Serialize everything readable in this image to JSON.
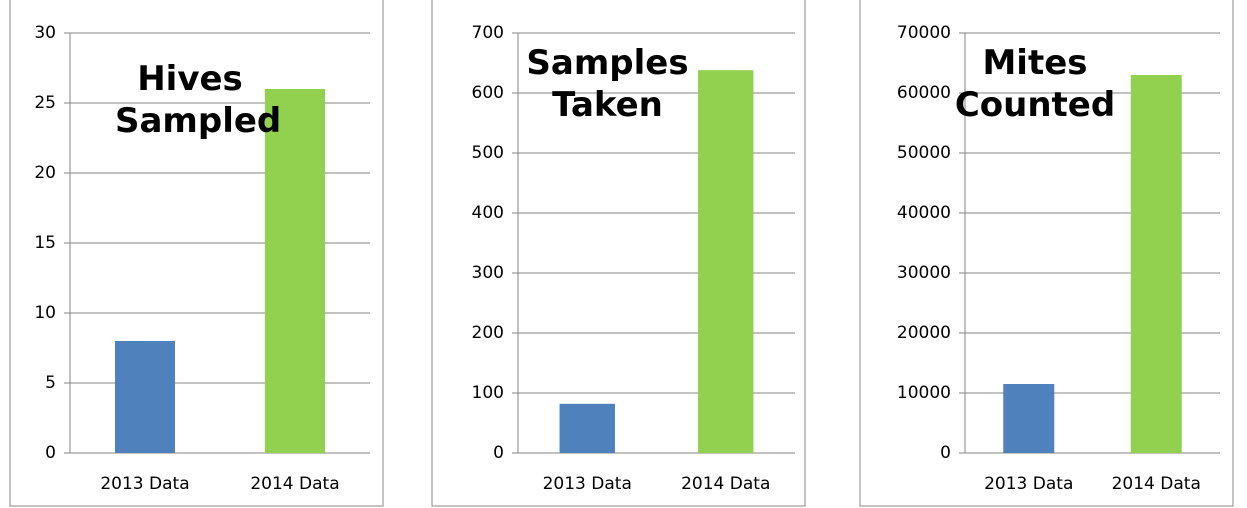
{
  "chart_data": [
    {
      "type": "bar",
      "title": "Hives Sampled",
      "categories": [
        "2013 Data",
        "2014 Data"
      ],
      "values": [
        8,
        26
      ],
      "colors": [
        "#4f81bd",
        "#92d050"
      ],
      "ylim": [
        0,
        30
      ],
      "yticks": [
        0,
        5,
        10,
        15,
        20,
        25,
        30
      ],
      "grid": true
    },
    {
      "type": "bar",
      "title": "Samples Taken",
      "categories": [
        "2013 Data",
        "2014 Data"
      ],
      "values": [
        82,
        638
      ],
      "colors": [
        "#4f81bd",
        "#92d050"
      ],
      "ylim": [
        0,
        700
      ],
      "yticks": [
        0,
        100,
        200,
        300,
        400,
        500,
        600,
        700
      ],
      "grid": true
    },
    {
      "type": "bar",
      "title": "Mites Counted",
      "categories": [
        "2013 Data",
        "2014 Data"
      ],
      "values": [
        11500,
        63000
      ],
      "colors": [
        "#4f81bd",
        "#92d050"
      ],
      "ylim": [
        0,
        70000
      ],
      "yticks": [
        0,
        10000,
        20000,
        30000,
        40000,
        50000,
        60000,
        70000
      ],
      "grid": true
    }
  ]
}
